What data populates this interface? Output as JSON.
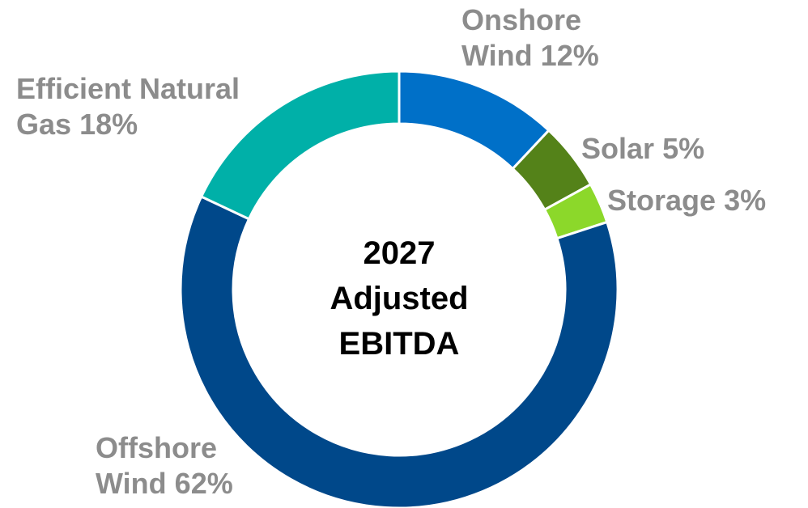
{
  "chart_data": {
    "type": "donut",
    "title": "2027 Adjusted EBITDA",
    "categories": [
      "Onshore Wind",
      "Solar",
      "Storage",
      "Offshore Wind",
      "Efficient Natural Gas"
    ],
    "values": [
      12,
      5,
      3,
      62,
      18
    ],
    "value_labels": [
      "12%",
      "5%",
      "3%",
      "62%",
      "18%"
    ],
    "colors": [
      "#0070c8",
      "#548219",
      "#8cd82a",
      "#00488a",
      "#00b0a8"
    ]
  }
}
